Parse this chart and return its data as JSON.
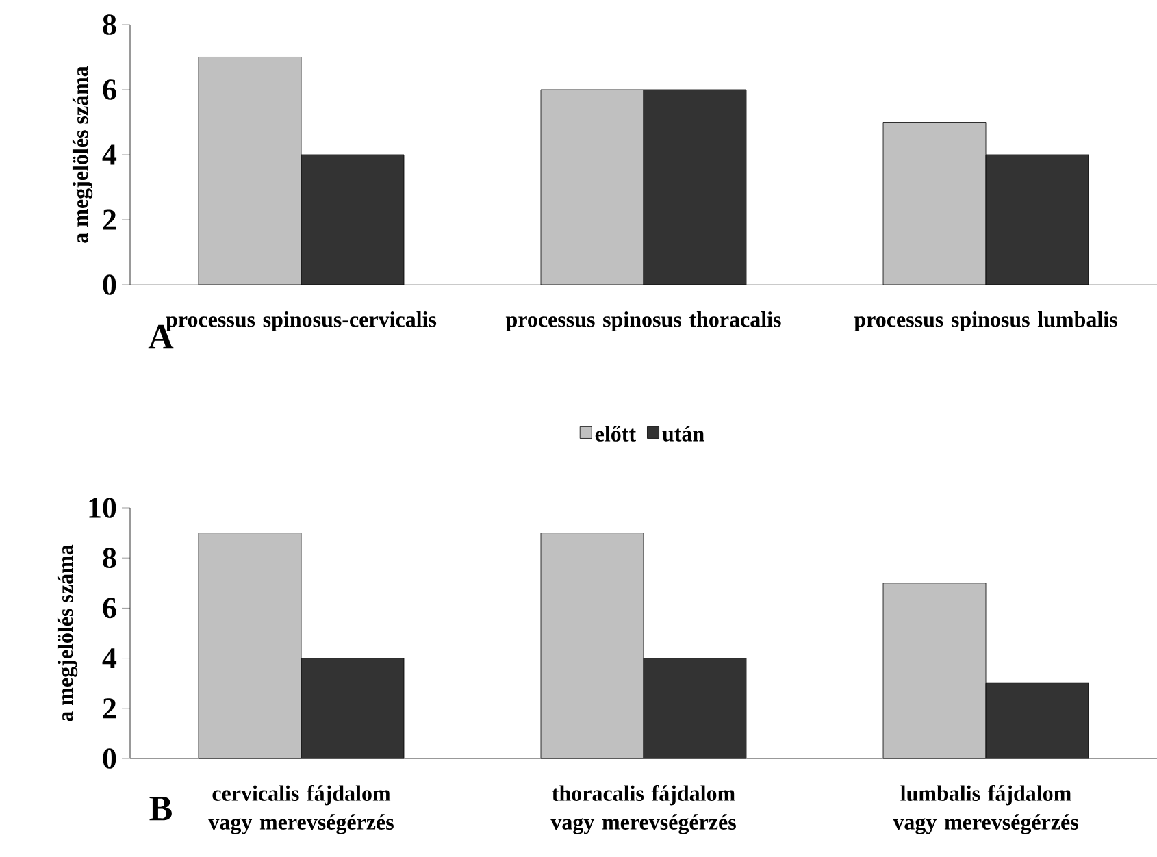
{
  "chart_data": [
    {
      "type": "bar",
      "ylabel": "a megjelölés száma",
      "categories": [
        "processus spinosus-cervicalis",
        "processus spinosus thoracalis",
        "processus spinosus lumbalis"
      ],
      "series": [
        {
          "name": "előtt",
          "color": "#c0c0c0",
          "values": [
            7,
            6,
            5
          ]
        },
        {
          "name": "után",
          "color": "#333333",
          "values": [
            4,
            6,
            4
          ]
        }
      ],
      "ylim": [
        0,
        8
      ],
      "yticks": [
        0,
        2,
        4,
        6,
        8
      ],
      "legend": "bottom",
      "annotations": [
        "A"
      ]
    },
    {
      "type": "bar",
      "ylabel": "a megjelölés száma",
      "categories": [
        "cervicalis fájdalom vagy merevségérzés",
        "thoracalis fájdalom vagy merevségérzés",
        "lumbalis fájdalom vagy merevségérzés"
      ],
      "series": [
        {
          "color": "#c0c0c0",
          "values": [
            9,
            9,
            7
          ]
        },
        {
          "color": "#333333",
          "values": [
            4,
            4,
            3
          ]
        }
      ],
      "ylim": [
        0,
        10
      ],
      "yticks": [
        0,
        2,
        4,
        6,
        8,
        10
      ],
      "annotations": [
        "B"
      ]
    }
  ]
}
